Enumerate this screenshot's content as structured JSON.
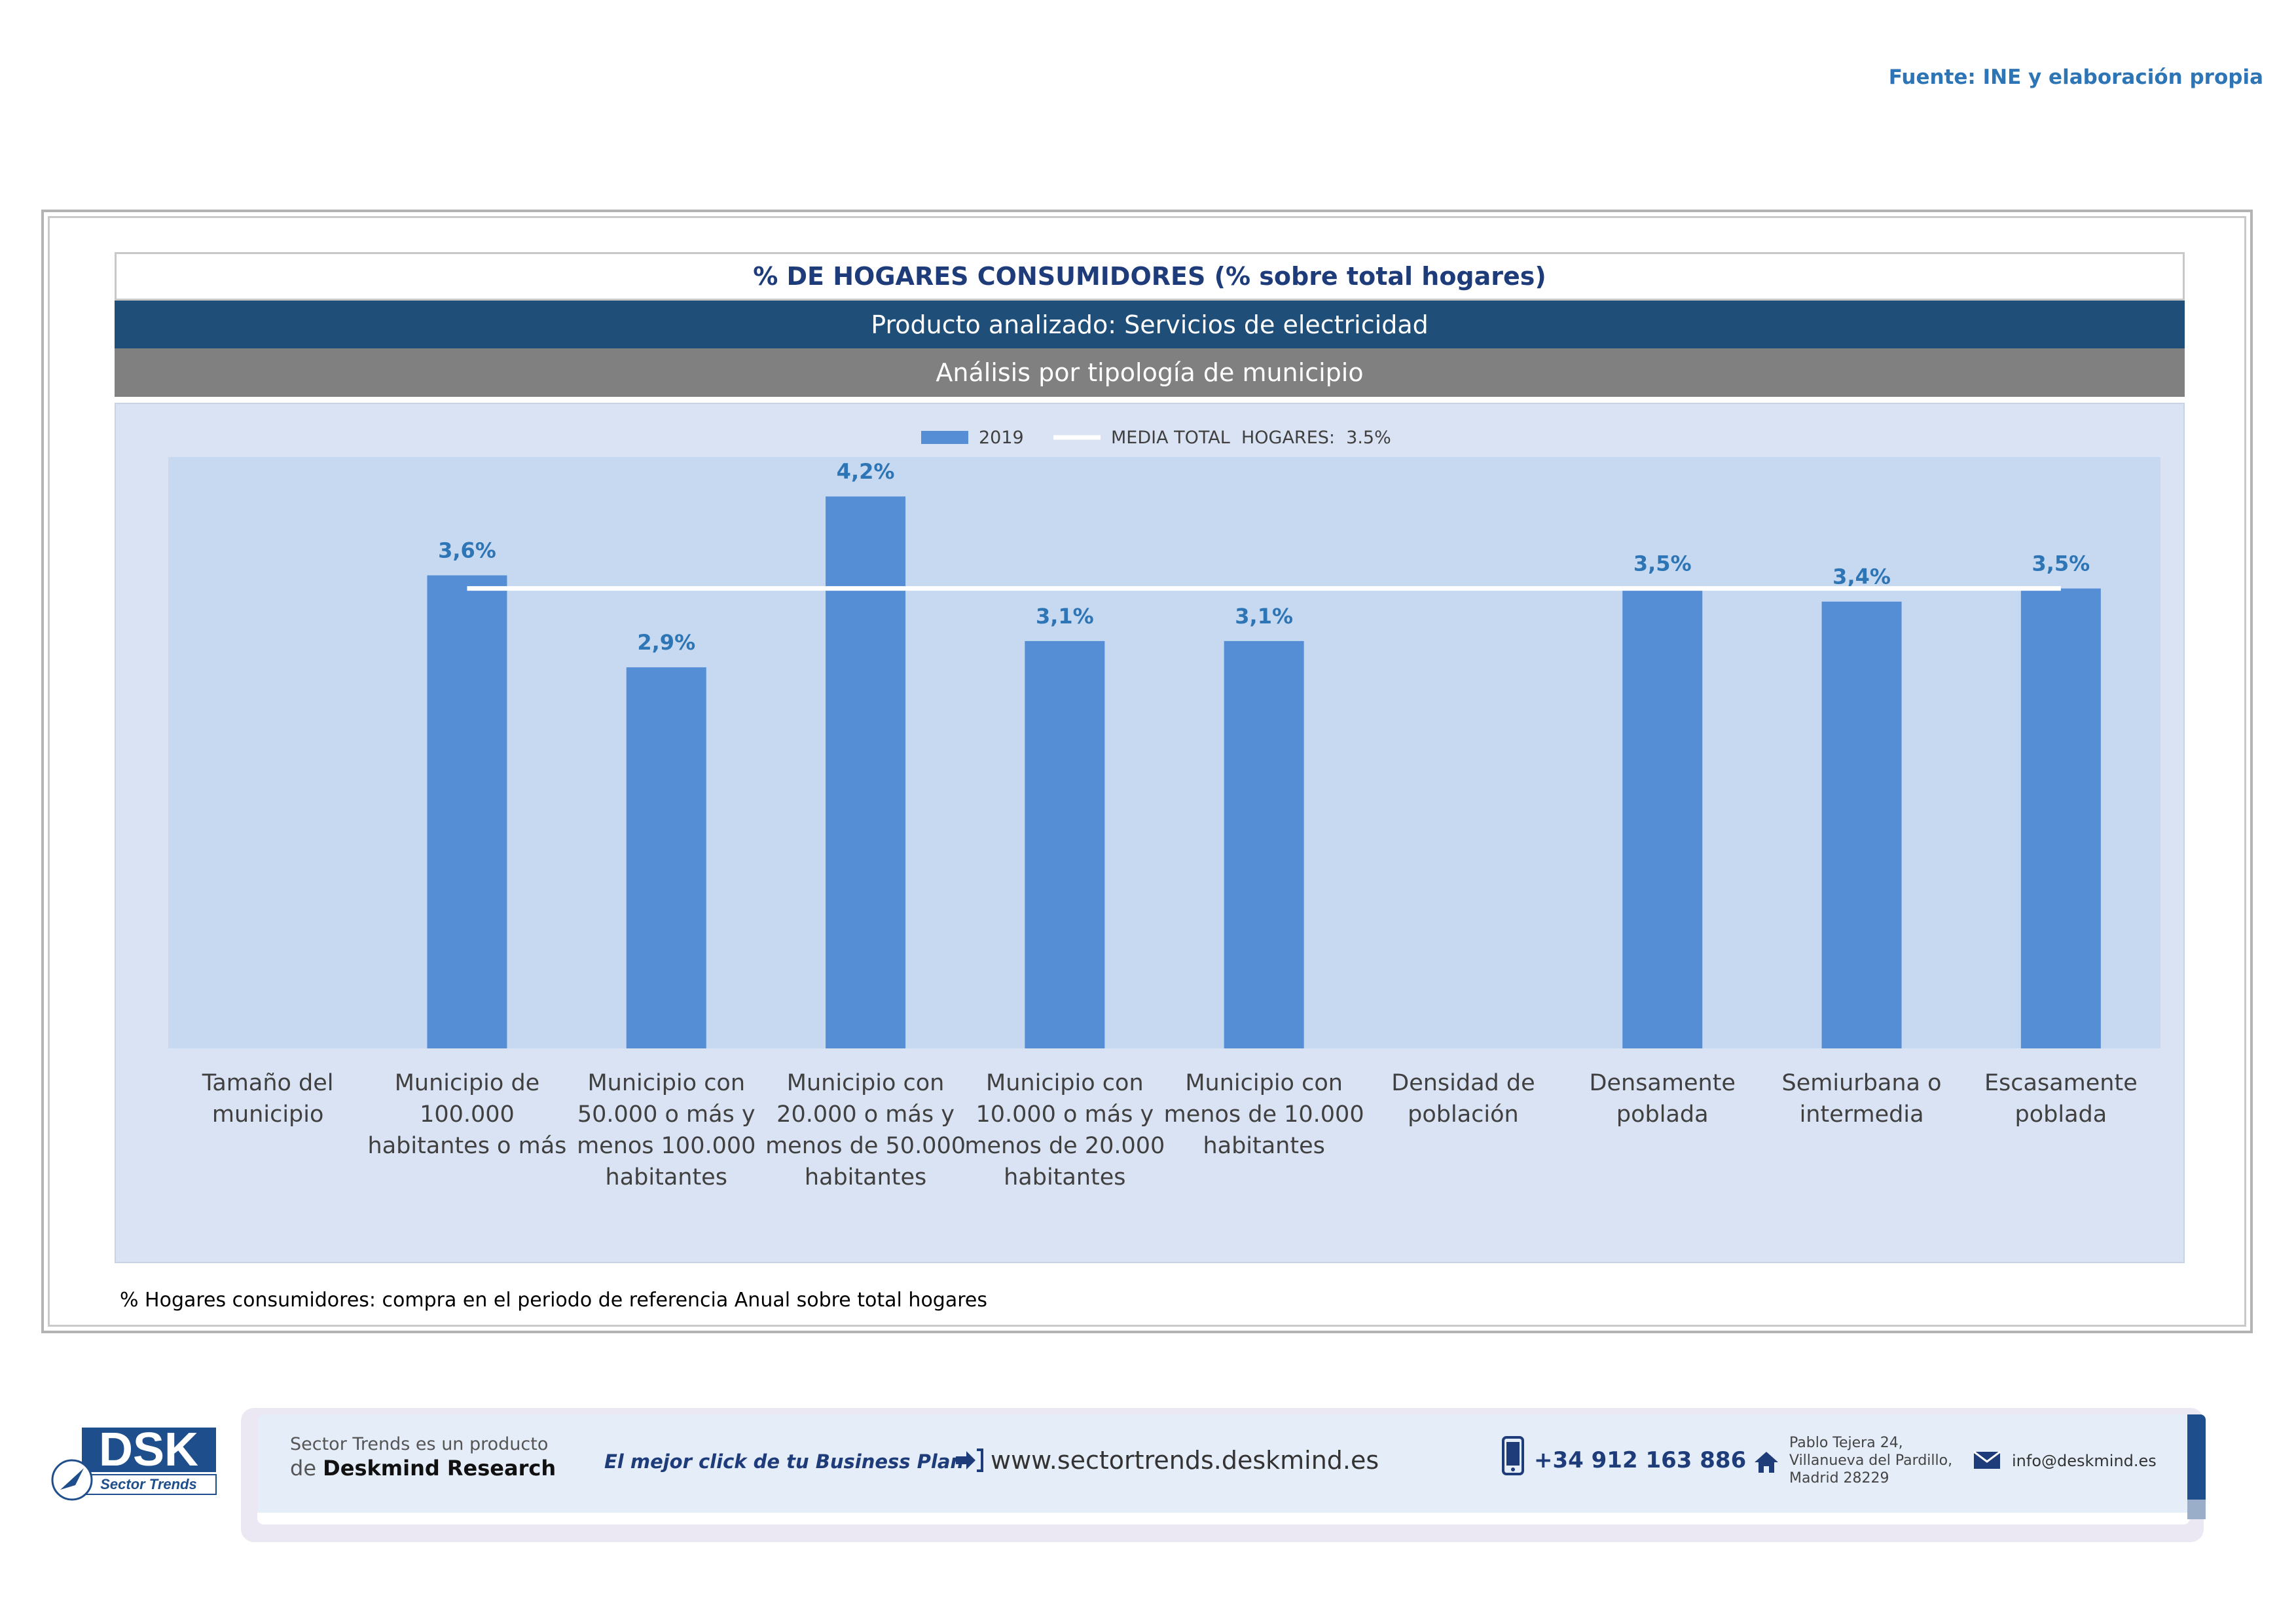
{
  "source": "Fuente: INE y elaboración propia",
  "header": {
    "title": "% DE HOGARES CONSUMIDORES (% sobre total hogares)",
    "product": "Producto analizado: Servicios de electricidad",
    "analysis": "Análisis por tipología de municipio"
  },
  "chart_data": {
    "type": "bar",
    "title": "% DE HOGARES CONSUMIDORES (% sobre total hogares)",
    "xlabel": "",
    "ylabel": "",
    "ylim": [
      0,
      4.5
    ],
    "grid": false,
    "legend_position": "top-center",
    "categories": [
      "Tamaño del municipio",
      "Municipio de 100.000 habitantes o más",
      "Municipio con 50.000 o más y menos 100.000 habitantes",
      "Municipio con 20.000 o más y menos de 50.000 habitantes",
      "Municipio con 10.000 o más y menos de 20.000 habitantes",
      "Municipio con menos de 10.000 habitantes",
      "Densidad de población",
      "Densamente poblada",
      "Semiurbana o intermedia",
      "Escasamente poblada"
    ],
    "category_lines": [
      [
        "Tamaño del",
        "municipio"
      ],
      [
        "Municipio de",
        "100.000",
        "habitantes o más"
      ],
      [
        "Municipio con",
        "50.000 o más y",
        "menos 100.000",
        "habitantes"
      ],
      [
        "Municipio con",
        "20.000 o más y",
        "menos de 50.000",
        "habitantes"
      ],
      [
        "Municipio con",
        "10.000 o más y",
        "menos de 20.000",
        "habitantes"
      ],
      [
        "Municipio con",
        "menos de 10.000",
        "habitantes"
      ],
      [
        "Densidad de",
        "población"
      ],
      [
        "Densamente",
        "poblada"
      ],
      [
        "Semiurbana o",
        "intermedia"
      ],
      [
        "Escasamente",
        "poblada"
      ]
    ],
    "series": [
      {
        "name": "2019",
        "color": "#558ed5",
        "values": [
          null,
          3.6,
          2.9,
          4.2,
          3.1,
          3.1,
          null,
          3.5,
          3.4,
          3.5
        ],
        "labels": [
          "",
          "3,6%",
          "2,9%",
          "4,2%",
          "3,1%",
          "3,1%",
          "",
          "3,5%",
          "3,4%",
          "3,5%"
        ]
      }
    ],
    "reference_line": {
      "name": "MEDIA TOTAL  HOGARES:  3.5%",
      "value": 3.5,
      "from_index": 1,
      "to_index": 9,
      "color": "#ffffff"
    },
    "label_color": "#2e75b6"
  },
  "footnote": "% Hogares consumidores: compra en el periodo de referencia Anual sobre total hogares",
  "footer": {
    "logo_text": "DSK",
    "logo_subtitle": "Sector Trends",
    "line1": "Sector Trends es un producto",
    "line2_prefix": "de",
    "line2_brand": "Deskmind Research",
    "slogan": "El mejor click de tu Business Plan",
    "website": "www.sectortrends.deskmind.es",
    "phone": "+34 912 163 886",
    "address": [
      "Pablo Tejera 24,",
      "Villanueva del Pardillo,",
      "Madrid 28229"
    ],
    "email": "info@deskmind.es"
  }
}
